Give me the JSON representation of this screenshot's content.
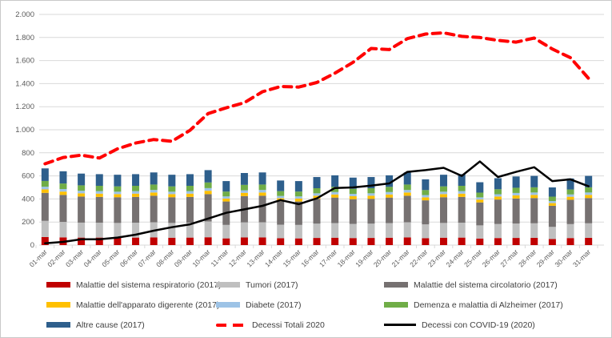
{
  "chart_data": {
    "type": "bar",
    "subtype": "stacked-bars-with-lines",
    "title": "",
    "xlabel": "",
    "ylabel": "",
    "grid": true,
    "x_tick_labels": [
      "01-mar",
      "02-mar",
      "03-mar",
      "04-mar",
      "05-mar",
      "06-mar",
      "07-mar",
      "08-mar",
      "09-mar",
      "10-mar",
      "11-mar",
      "12-mar",
      "13-mar",
      "14-mar",
      "15-mar",
      "16-mar",
      "17-mar",
      "18-mar",
      "19-mar",
      "20-mar",
      "21-mar",
      "22-mar",
      "23-mar",
      "24-mar",
      "25-mar",
      "26-mar",
      "27-mar",
      "28-mar",
      "29-mar",
      "30-mar",
      "31-mar"
    ],
    "y_axis": {
      "min": 0,
      "max": 2000,
      "step": 200,
      "tick_labels": [
        "0",
        "200",
        "400",
        "600",
        "800",
        "1.000",
        "1.200",
        "1.400",
        "1.600",
        "1.800",
        "2.000"
      ]
    },
    "bar_series": [
      {
        "name": "Malattie del sistema respiratorio (2017)",
        "color": "#C00000",
        "values": [
          70,
          67,
          65,
          65,
          64,
          65,
          66,
          64,
          65,
          68,
          58,
          66,
          66,
          59,
          58,
          62,
          64,
          61,
          62,
          64,
          66,
          60,
          64,
          65,
          57,
          61,
          62,
          63,
          53,
          61,
          63
        ]
      },
      {
        "name": "Tumori (2017)",
        "color": "#BFBFBF",
        "values": [
          140,
          134,
          130,
          129,
          128,
          129,
          132,
          128,
          129,
          137,
          117,
          131,
          132,
          118,
          117,
          124,
          127,
          123,
          124,
          127,
          132,
          120,
          128,
          129,
          114,
          122,
          125,
          126,
          105,
          121,
          126
        ]
      },
      {
        "name": "Malattie del sistema circolatorio (2017)",
        "color": "#767171",
        "values": [
          243,
          234,
          226,
          224,
          223,
          224,
          230,
          223,
          224,
          237,
          203,
          228,
          230,
          204,
          203,
          215,
          221,
          214,
          215,
          221,
          230,
          208,
          223,
          224,
          199,
          212,
          217,
          219,
          183,
          211,
          219
        ]
      },
      {
        "name": "Malattie dell'apparato digerente (2017)",
        "color": "#FFC000",
        "values": [
          30,
          29,
          28,
          28,
          27,
          28,
          28,
          27,
          28,
          29,
          25,
          28,
          28,
          25,
          25,
          27,
          27,
          26,
          27,
          27,
          28,
          26,
          27,
          28,
          25,
          26,
          27,
          27,
          23,
          26,
          27
        ]
      },
      {
        "name": "Diabete (2017)",
        "color": "#9DC3E6",
        "values": [
          23,
          22,
          22,
          22,
          21,
          22,
          22,
          21,
          22,
          23,
          19,
          22,
          22,
          20,
          19,
          21,
          21,
          20,
          21,
          21,
          22,
          20,
          21,
          22,
          19,
          20,
          21,
          21,
          18,
          20,
          21
        ]
      },
      {
        "name": "Demenza e malattia di Alzheimer (2017)",
        "color": "#70AD47",
        "values": [
          50,
          48,
          47,
          46,
          46,
          46,
          47,
          46,
          46,
          49,
          42,
          47,
          47,
          42,
          42,
          44,
          45,
          44,
          44,
          45,
          47,
          43,
          46,
          46,
          41,
          43,
          45,
          45,
          38,
          43,
          45
        ]
      },
      {
        "name": "Altre cause (2017)",
        "color": "#2E5F8C",
        "values": [
          109,
          106,
          102,
          101,
          101,
          101,
          105,
          101,
          101,
          107,
          91,
          103,
          105,
          92,
          91,
          97,
          100,
          97,
          97,
          100,
          105,
          93,
          101,
          101,
          90,
          96,
          98,
          99,
          80,
          96,
          99
        ]
      }
    ],
    "line_series": [
      {
        "name": "Decessi Totali 2020",
        "color": "#FF0000",
        "style": "dashed",
        "width": 4,
        "values": [
          705,
          760,
          780,
          755,
          835,
          885,
          915,
          900,
          995,
          1140,
          1190,
          1235,
          1330,
          1375,
          1370,
          1410,
          1490,
          1585,
          1705,
          1695,
          1790,
          1830,
          1840,
          1810,
          1800,
          1775,
          1760,
          1795,
          1700,
          1625,
          1445
        ]
      },
      {
        "name": "Decessi con COVID-19 (2020)",
        "color": "#000000",
        "style": "solid",
        "width": 2.5,
        "values": [
          15,
          28,
          50,
          50,
          65,
          90,
          125,
          155,
          180,
          230,
          280,
          310,
          340,
          390,
          355,
          405,
          495,
          500,
          515,
          535,
          635,
          650,
          670,
          600,
          725,
          590,
          635,
          675,
          555,
          570,
          510
        ]
      }
    ],
    "gridline_color": "#D9D9D9",
    "axis_text_color": "#595959"
  },
  "legend": {
    "items": [
      {
        "label": "Malattie del sistema respiratorio (2017)",
        "swatch": "bar",
        "color": "#C00000"
      },
      {
        "label": "Tumori (2017)",
        "swatch": "bar",
        "color": "#BFBFBF"
      },
      {
        "label": "Malattie del sistema circolatorio (2017)",
        "swatch": "bar",
        "color": "#767171"
      },
      {
        "label": "Malattie dell'apparato digerente (2017)",
        "swatch": "bar",
        "color": "#FFC000"
      },
      {
        "label": "Diabete (2017)",
        "swatch": "bar",
        "color": "#9DC3E6"
      },
      {
        "label": "Demenza e malattia di Alzheimer (2017)",
        "swatch": "bar",
        "color": "#70AD47"
      },
      {
        "label": "Altre cause (2017)",
        "swatch": "bar",
        "color": "#2E5F8C"
      },
      {
        "label": "Decessi Totali 2020",
        "swatch": "dash",
        "color": "#FF0000"
      },
      {
        "label": "Decessi con COVID-19 (2020)",
        "swatch": "line",
        "color": "#000000"
      }
    ]
  }
}
